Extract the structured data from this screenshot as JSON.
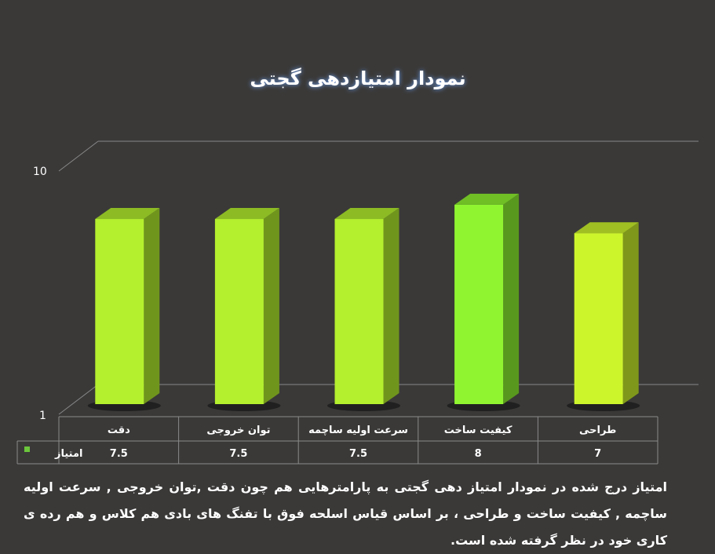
{
  "chart_data": {
    "type": "bar",
    "title": "نمودار امتیازدهی گجتی",
    "categories": [
      "دقت",
      "توان خروجی",
      "سرعت اولیه ساچمه",
      "کیفیت ساخت",
      "طراحی"
    ],
    "series": [
      {
        "name": "امتیاز",
        "values": [
          7.5,
          7.5,
          7.5,
          8,
          7
        ]
      }
    ],
    "value_labels": [
      "7.5",
      "7.5",
      "7.5",
      "8",
      "7"
    ],
    "ylim": [
      1,
      10
    ],
    "y_ticks": [
      "10",
      "1"
    ],
    "grid": true,
    "legend": "data-table",
    "bar_colors": [
      "#b4f02e",
      "#b4f02e",
      "#b4f02e",
      "#90f530",
      "#cdf52c"
    ]
  },
  "caption": "امتیاز درج شده در نمودار امتیاز دهی گجتی  به پارامترهایی هم چون دقت ,توان خروجی , سرعت اولیه ساچمه , کیفیت ساخت و طراحی ، بر اساس قیاس اسلحه فوق با تفنگ های بادی هم کلاس و هم رده ی کاری خود در نظر گرفته شده است."
}
